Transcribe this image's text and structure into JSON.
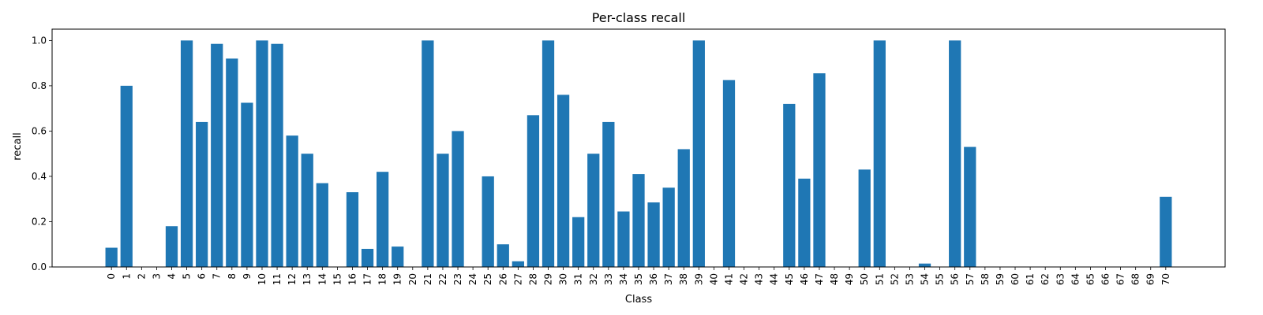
{
  "chart_data": {
    "type": "bar",
    "title": "Per-class recall",
    "xlabel": "Class",
    "ylabel": "recall",
    "ylim": [
      0,
      1.05
    ],
    "yticks": [
      "0.0",
      "0.2",
      "0.4",
      "0.6",
      "0.8",
      "1.0"
    ],
    "grid": false,
    "bar_color": "#1f77b4",
    "categories": [
      "0",
      "1",
      "2",
      "3",
      "4",
      "5",
      "6",
      "7",
      "8",
      "9",
      "10",
      "11",
      "12",
      "13",
      "14",
      "15",
      "16",
      "17",
      "18",
      "19",
      "20",
      "21",
      "22",
      "23",
      "24",
      "25",
      "26",
      "27",
      "28",
      "29",
      "30",
      "31",
      "32",
      "33",
      "34",
      "35",
      "36",
      "37",
      "38",
      "39",
      "40",
      "41",
      "42",
      "43",
      "44",
      "45",
      "46",
      "47",
      "48",
      "49",
      "50",
      "51",
      "52",
      "53",
      "54",
      "55",
      "56",
      "57",
      "58",
      "59",
      "60",
      "61",
      "62",
      "63",
      "64",
      "65",
      "66",
      "67",
      "68",
      "69",
      "70"
    ],
    "values": [
      0.085,
      0.8,
      0.0,
      0.0,
      0.18,
      1.0,
      0.64,
      0.985,
      0.92,
      0.725,
      1.0,
      0.985,
      0.58,
      0.5,
      0.37,
      0.0,
      0.33,
      0.08,
      0.42,
      0.09,
      0.0,
      1.0,
      0.5,
      0.6,
      0.0,
      0.4,
      0.1,
      0.025,
      0.67,
      1.0,
      0.76,
      0.22,
      0.5,
      0.64,
      0.245,
      0.41,
      0.285,
      0.35,
      0.52,
      1.0,
      0.0,
      0.825,
      0.0,
      0.0,
      0.0,
      0.72,
      0.39,
      0.855,
      0.0,
      0.0,
      0.43,
      1.0,
      0.0,
      0.0,
      0.015,
      0.0,
      1.0,
      0.53,
      0.0,
      0.0,
      0.0,
      0.0,
      0.0,
      0.0,
      0.0,
      0.0,
      0.0,
      0.0,
      0.0,
      0.0,
      0.31
    ]
  }
}
